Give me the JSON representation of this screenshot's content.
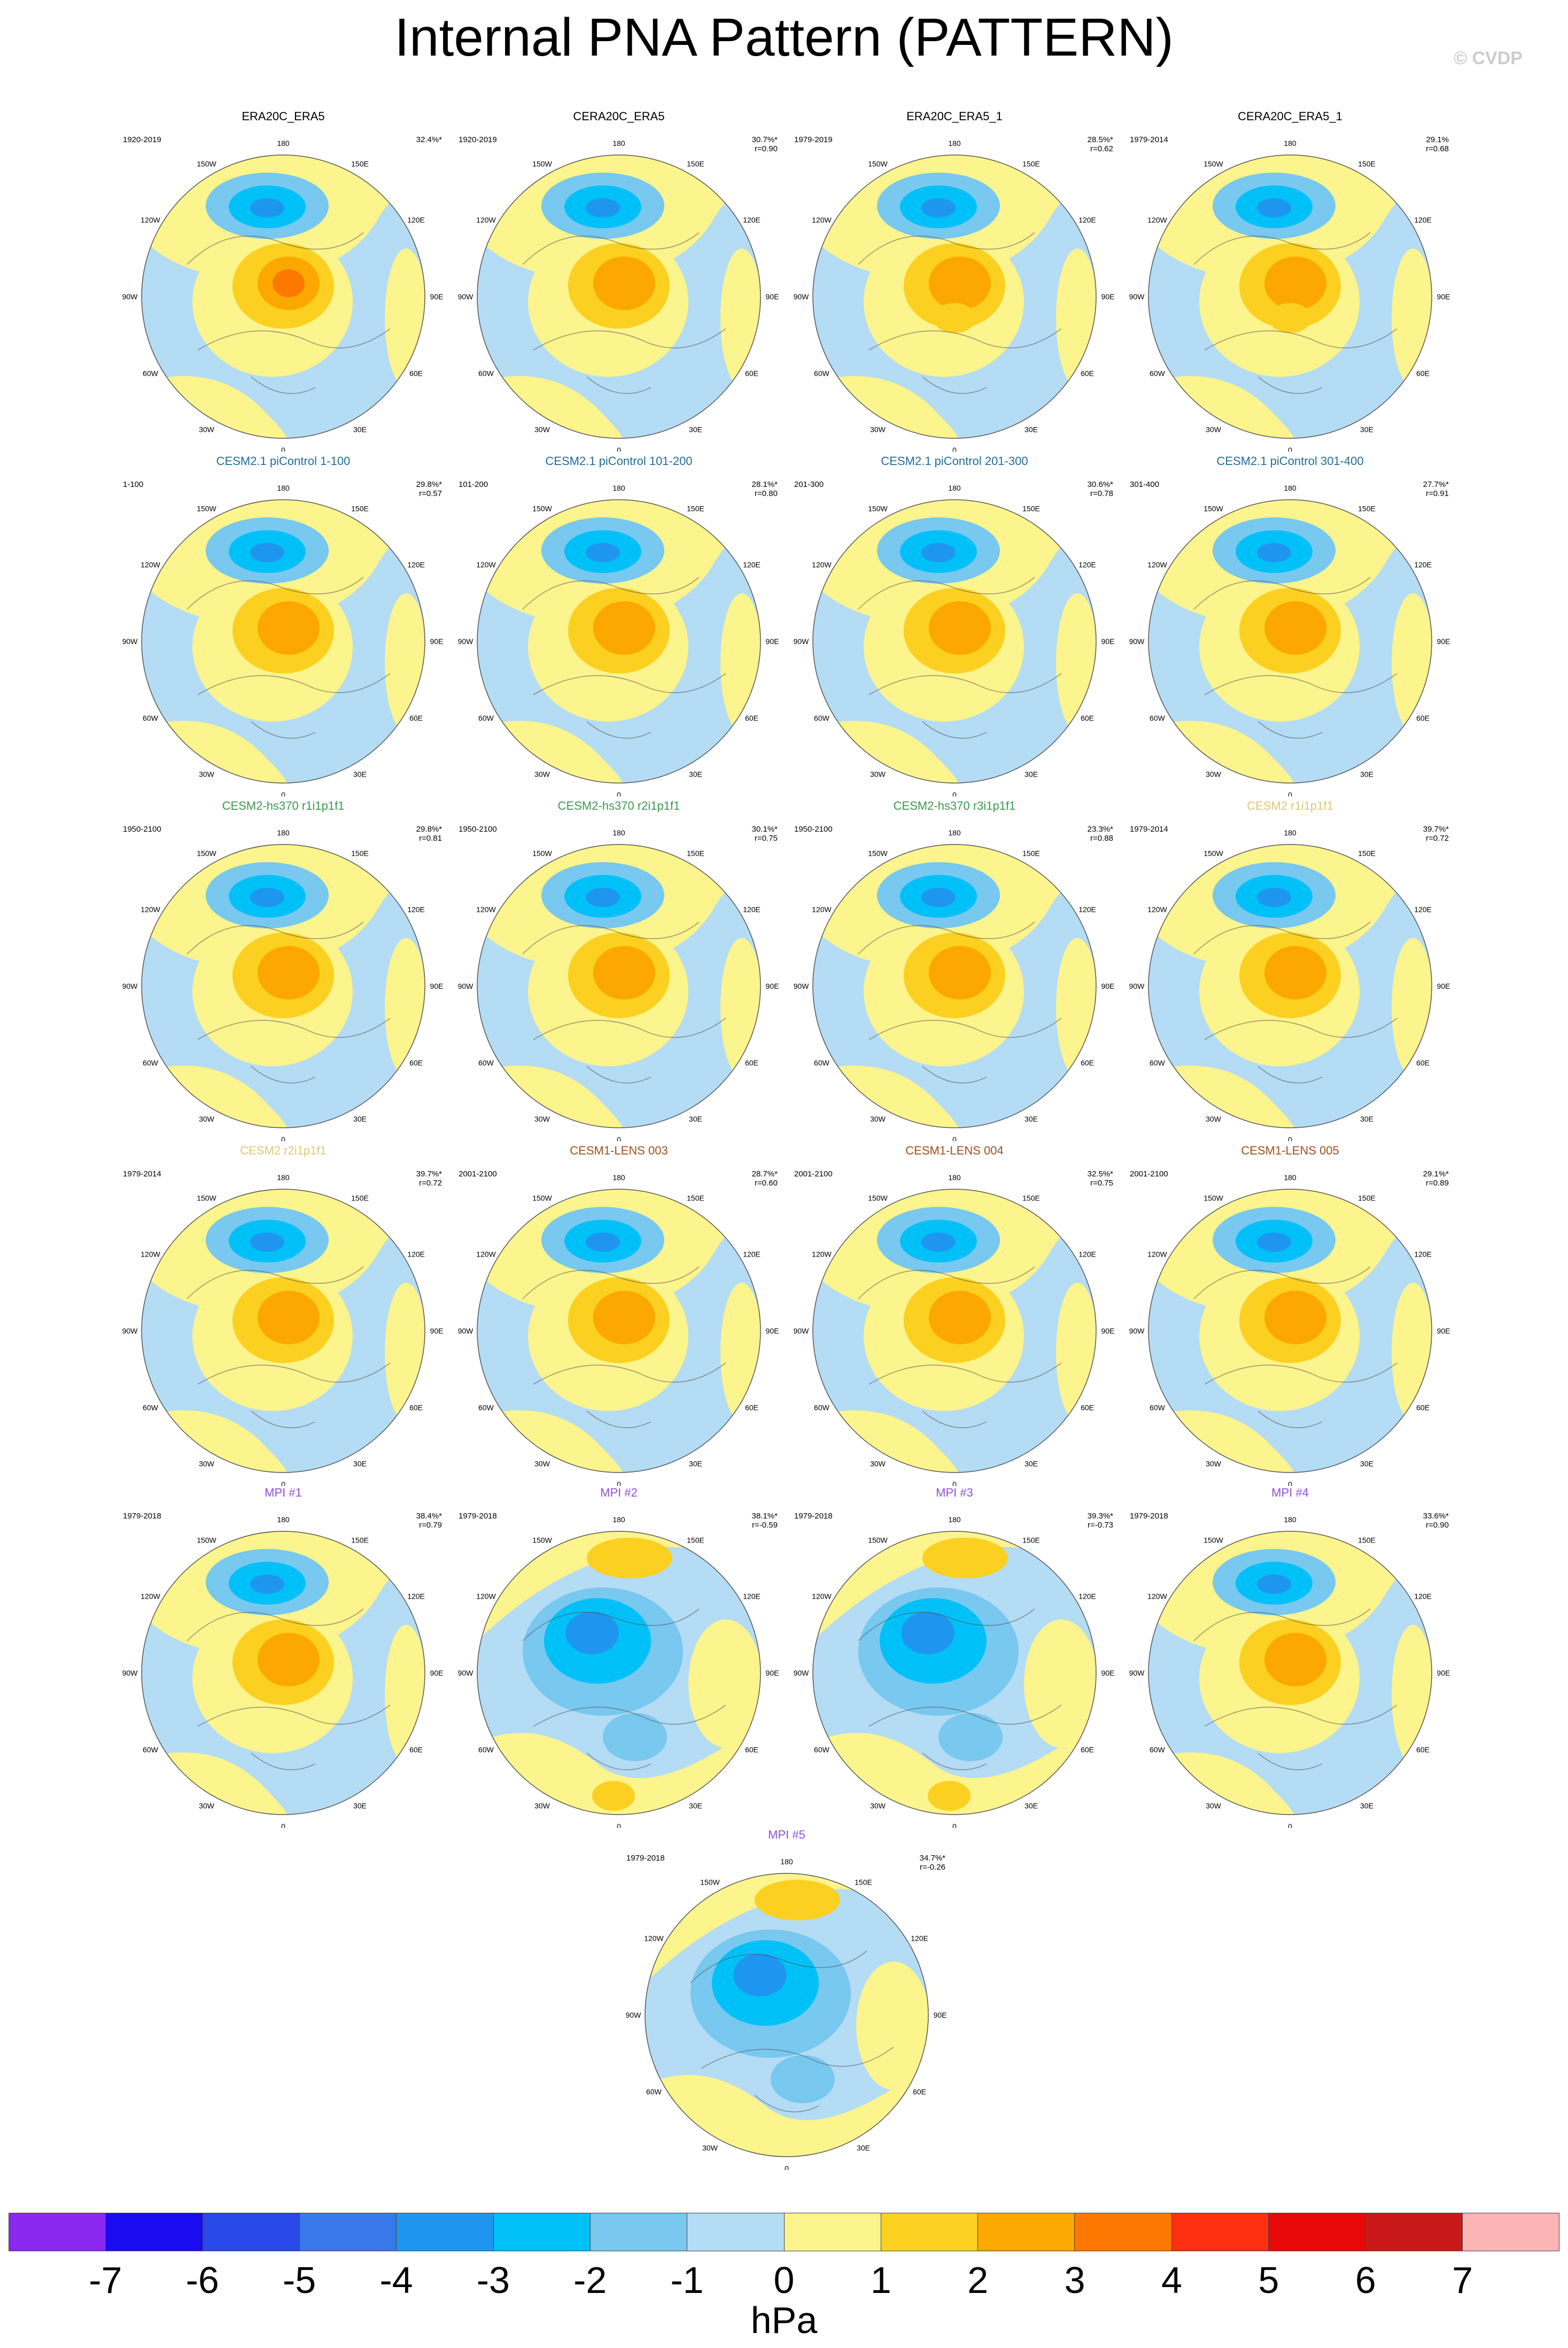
{
  "title": "Internal PNA Pattern (PATTERN)",
  "watermark": "© CVDP",
  "lon_labels": [
    "180",
    "150E",
    "120E",
    "90E",
    "60E",
    "30E",
    "0",
    "30W",
    "60W",
    "90W",
    "120W",
    "150W"
  ],
  "colorbar": {
    "units": "hPa",
    "ticks": [
      "-7",
      "-6",
      "-5",
      "-4",
      "-3",
      "-2",
      "-1",
      "0",
      "1",
      "2",
      "3",
      "4",
      "5",
      "6",
      "7"
    ],
    "colors": [
      "#8a28f0",
      "#1a0cf0",
      "#2848e8",
      "#3878ea",
      "#1e96f0",
      "#00c0f8",
      "#78c8f0",
      "#b4dcf4",
      "#fcf48c",
      "#fcd020",
      "#fca800",
      "#fc7800",
      "#fc3010",
      "#e80808",
      "#c81818",
      "#fcb4b4"
    ]
  },
  "panels": [
    {
      "title": "ERA20C_ERA5",
      "title_color": "#000000",
      "years": "1920-2019",
      "pct": "32.4%*",
      "r": "",
      "pattern": "obs"
    },
    {
      "title": "CERA20C_ERA5",
      "title_color": "#000000",
      "years": "1920-2019",
      "pct": "30.7%*",
      "r": "r=0.90",
      "pattern": "obs2"
    },
    {
      "title": "ERA20C_ERA5_1",
      "title_color": "#000000",
      "years": "1979-2019",
      "pct": "28.5%*",
      "r": "r=0.62",
      "pattern": "obs3"
    },
    {
      "title": "CERA20C_ERA5_1",
      "title_color": "#000000",
      "years": "1979-2014",
      "pct": "29.1%",
      "r": "r=0.68",
      "pattern": "obs3"
    },
    {
      "title": "CESM2.1 piControl 1-100",
      "title_color": "#1e6e96",
      "years": "1-100",
      "pct": "29.8%*",
      "r": "r=0.57",
      "pattern": "std"
    },
    {
      "title": "CESM2.1 piControl 101-200",
      "title_color": "#1e6e96",
      "years": "101-200",
      "pct": "28.1%*",
      "r": "r=0.80",
      "pattern": "std"
    },
    {
      "title": "CESM2.1 piControl 201-300",
      "title_color": "#1e6e96",
      "years": "201-300",
      "pct": "30.6%*",
      "r": "r=0.78",
      "pattern": "std"
    },
    {
      "title": "CESM2.1 piControl 301-400",
      "title_color": "#1e6e96",
      "years": "301-400",
      "pct": "27.7%*",
      "r": "r=0.91",
      "pattern": "std"
    },
    {
      "title": "CESM2-hs370 r1i1p1f1",
      "title_color": "#3c9650",
      "years": "1950-2100",
      "pct": "29.8%*",
      "r": "r=0.81",
      "pattern": "std"
    },
    {
      "title": "CESM2-hs370 r2i1p1f1",
      "title_color": "#3c9650",
      "years": "1950-2100",
      "pct": "30.1%*",
      "r": "r=0.75",
      "pattern": "std"
    },
    {
      "title": "CESM2-hs370 r3i1p1f1",
      "title_color": "#3c9650",
      "years": "1950-2100",
      "pct": "23.3%*",
      "r": "r=0.88",
      "pattern": "std"
    },
    {
      "title": "CESM2 r1i1p1f1",
      "title_color": "#dcc878",
      "years": "1979-2014",
      "pct": "39.7%*",
      "r": "r=0.72",
      "pattern": "std"
    },
    {
      "title": "CESM2 r2i1p1f1",
      "title_color": "#dcc878",
      "years": "1979-2014",
      "pct": "39.7%*",
      "r": "r=0.72",
      "pattern": "std"
    },
    {
      "title": "CESM1-LENS 003",
      "title_color": "#a0501e",
      "years": "2001-2100",
      "pct": "28.7%*",
      "r": "r=0.60",
      "pattern": "std"
    },
    {
      "title": "CESM1-LENS 004",
      "title_color": "#a0501e",
      "years": "2001-2100",
      "pct": "32.5%*",
      "r": "r=0.75",
      "pattern": "std"
    },
    {
      "title": "CESM1-LENS 005",
      "title_color": "#a0501e",
      "years": "2001-2100",
      "pct": "29.1%*",
      "r": "r=0.89",
      "pattern": "std"
    },
    {
      "title": "MPI #1",
      "title_color": "#8c50dc",
      "years": "1979-2018",
      "pct": "38.4%*",
      "r": "r=0.79",
      "pattern": "std"
    },
    {
      "title": "MPI #2",
      "title_color": "#8c50dc",
      "years": "1979-2018",
      "pct": "38.1%*",
      "r": "r=-0.59",
      "pattern": "inv"
    },
    {
      "title": "MPI #3",
      "title_color": "#8c50dc",
      "years": "1979-2018",
      "pct": "39.3%*",
      "r": "r=-0.73",
      "pattern": "inv"
    },
    {
      "title": "MPI #4",
      "title_color": "#8c50dc",
      "years": "1979-2018",
      "pct": "33.6%*",
      "r": "r=0.90",
      "pattern": "std"
    },
    {
      "title": "MPI #5",
      "title_color": "#8c50dc",
      "years": "1979-2018",
      "pct": "34.7%*",
      "r": "r=-0.26",
      "pattern": "inv2"
    }
  ]
}
